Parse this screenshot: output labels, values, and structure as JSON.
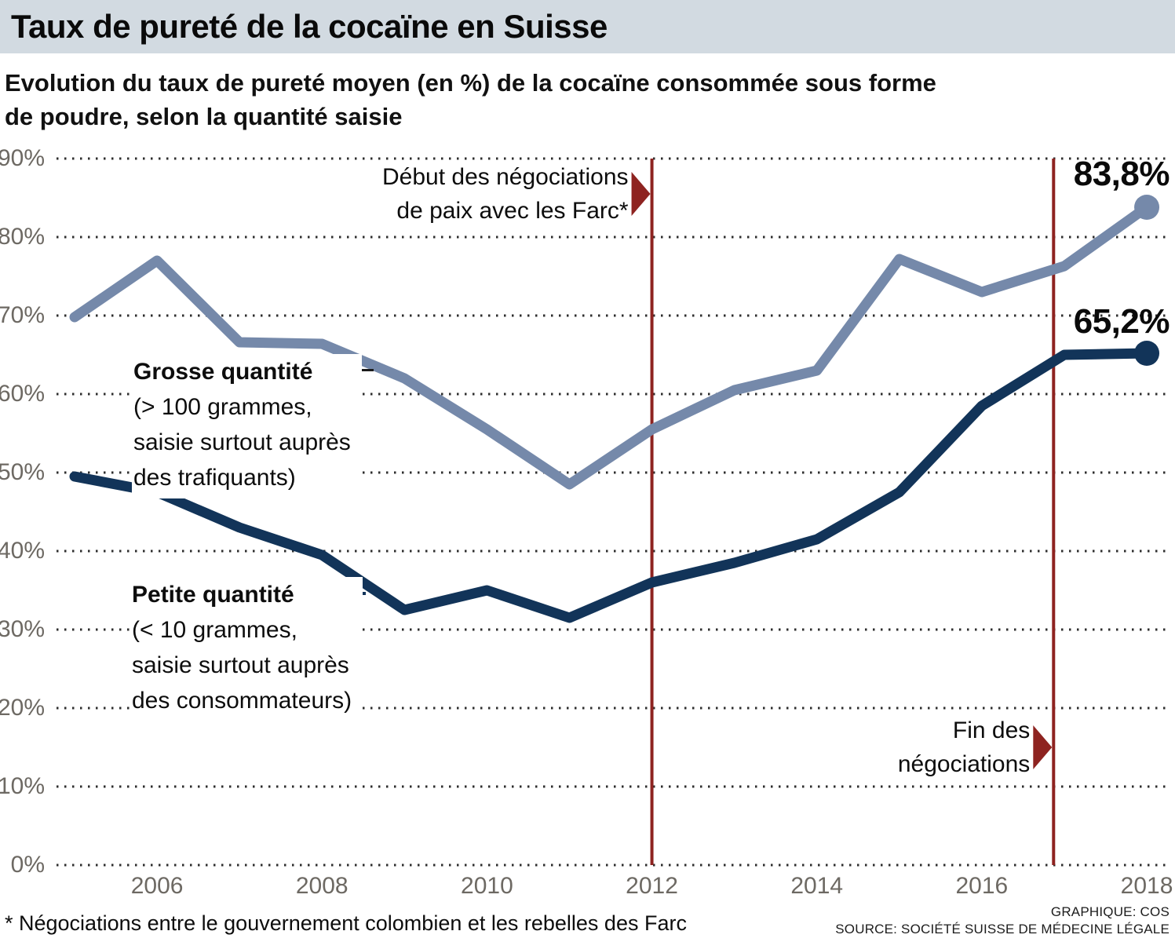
{
  "header": {
    "title": "Taux de pureté de la cocaïne en Suisse"
  },
  "subtitle": {
    "line1": "Evolution du taux de pureté moyen (en %) de la cocaïne consommée sous forme",
    "line2": "de poudre, selon la quantité saisie"
  },
  "chart_data": {
    "type": "line",
    "title": "Taux de pureté de la cocaïne en Suisse",
    "x": [
      2005,
      2006,
      2007,
      2008,
      2009,
      2010,
      2011,
      2012,
      2013,
      2014,
      2015,
      2016,
      2017,
      2018
    ],
    "series": [
      {
        "name": "Grosse quantité (> 100 grammes, saisie surtout auprès des trafiquants)",
        "color": "#7589aa",
        "values": [
          69.8,
          77,
          66.6,
          66.4,
          62,
          55.5,
          48.5,
          55.5,
          60.5,
          63,
          77.2,
          73,
          76.3,
          83.8
        ],
        "end_label": "83,8%"
      },
      {
        "name": "Petite quantité (< 10 grammes, saisie surtout auprès des consommateurs)",
        "color": "#123459",
        "values": [
          49.5,
          47.5,
          43,
          39.5,
          32.5,
          35,
          31.5,
          36,
          38.5,
          41.5,
          47.5,
          58.5,
          65,
          65.2
        ],
        "end_label": "65,2%"
      }
    ],
    "ylim": [
      0,
      90
    ],
    "y_ticks": [
      "90%",
      "80%",
      "70%",
      "60%",
      "50%",
      "40%",
      "30%",
      "20%",
      "10%",
      "0%"
    ],
    "x_ticks": [
      "2006",
      "2008",
      "2010",
      "2012",
      "2014",
      "2016",
      "2018"
    ],
    "grid": "dotted-horizontal",
    "legend_position": "inline-callouts",
    "event_lines": [
      {
        "x": 2012,
        "marker_pct": 85.5,
        "color": "#8e2320",
        "lines": [
          "Début des négociations",
          "de paix avec les Farc*"
        ]
      },
      {
        "x": 2016.87,
        "marker_pct": 15,
        "color": "#8e2320",
        "lines": [
          "Fin des",
          "négociations"
        ]
      }
    ]
  },
  "callouts": {
    "grosse": {
      "title": "Grosse quantité",
      "line1": "(> 100 grammes,",
      "line2": "saisie surtout auprès",
      "line3": "des trafiquants)"
    },
    "petite": {
      "title": "Petite quantité",
      "line1": "(< 10 grammes,",
      "line2": "saisie surtout auprès",
      "line3": "des consommateurs)"
    }
  },
  "footer": {
    "note": "* Négociations entre le gouvernement colombien et les rebelles des Farc",
    "credit1": "GRAPHIQUE: COS",
    "credit2": "SOURCE: SOCIÉTÉ SUISSE DE MÉDECINE LÉGALE"
  },
  "colors": {
    "header_bg": "#d2dae1",
    "grosse_line": "#7589aa",
    "petite_line": "#123459",
    "event_line": "#8e2320",
    "grid_dots": "#2d2d2d",
    "tick_text": "#6d6963"
  }
}
